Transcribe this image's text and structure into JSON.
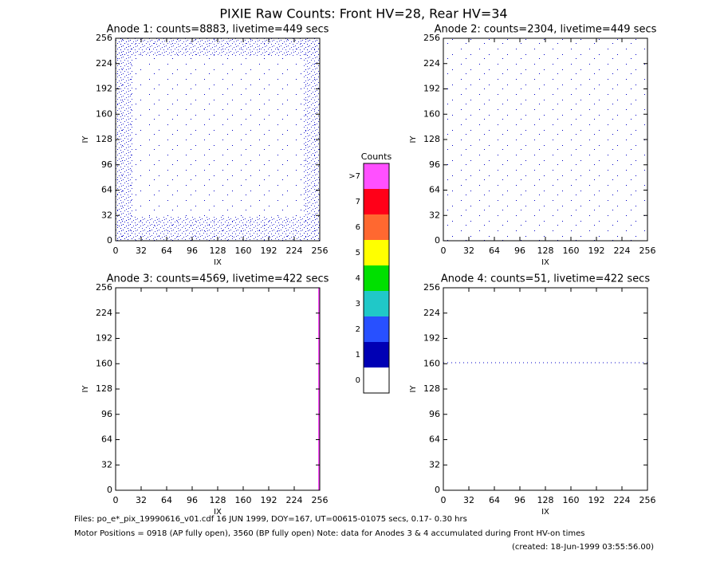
{
  "title": "PIXIE Raw Counts:  Front HV=28, Rear HV=34",
  "chart_data": [
    {
      "type": "heatmap",
      "title": "Anode 1: counts=8883, livetime=449 secs",
      "xlabel": "IX",
      "ylabel": "IY",
      "xlim": [
        0,
        256
      ],
      "ylim": [
        0,
        256
      ],
      "xticks": [
        0,
        32,
        64,
        96,
        128,
        160,
        192,
        224,
        256
      ],
      "yticks": [
        0,
        32,
        64,
        96,
        128,
        160,
        192,
        224,
        256
      ]
    },
    {
      "type": "heatmap",
      "title": "Anode 2: counts=2304, livetime=449 secs",
      "xlabel": "IX",
      "ylabel": "IY",
      "xlim": [
        0,
        256
      ],
      "ylim": [
        0,
        256
      ],
      "xticks": [
        0,
        32,
        64,
        96,
        128,
        160,
        192,
        224,
        256
      ],
      "yticks": [
        0,
        32,
        64,
        96,
        128,
        160,
        192,
        224,
        256
      ]
    },
    {
      "type": "heatmap",
      "title": "Anode 3: counts=4569, livetime=422 secs",
      "xlabel": "IX",
      "ylabel": "IY",
      "xlim": [
        0,
        256
      ],
      "ylim": [
        0,
        256
      ],
      "xticks": [
        0,
        32,
        64,
        96,
        128,
        160,
        192,
        224,
        256
      ],
      "yticks": [
        0,
        32,
        64,
        96,
        128,
        160,
        192,
        224,
        256
      ]
    },
    {
      "type": "heatmap",
      "title": "Anode 4: counts=51, livetime=422 secs",
      "xlabel": "IX",
      "ylabel": "IY",
      "xlim": [
        0,
        256
      ],
      "ylim": [
        0,
        256
      ],
      "xticks": [
        0,
        32,
        64,
        96,
        128,
        160,
        192,
        224,
        256
      ],
      "yticks": [
        0,
        32,
        64,
        96,
        128,
        160,
        192,
        224,
        256
      ]
    }
  ],
  "colorbar": {
    "title": "Counts",
    "labels": [
      "0",
      "1",
      "2",
      "3",
      "4",
      "5",
      "6",
      "7",
      ">7"
    ],
    "colors": [
      "#ffffff",
      "#0000b4",
      "#2850ff",
      "#20c8c8",
      "#00e000",
      "#ffff00",
      "#ff6830",
      "#ff0018",
      "#ff50ff"
    ]
  },
  "footer": {
    "files": "Files: po_e*_pix_19990616_v01.cdf    16 JUN 1999, DOY=167, UT=00615-01075 secs,  0.17- 0.30 hrs",
    "motor": "Motor Positions = 0918 (AP fully open), 3560 (BP fully open)    Note: data for Anodes 3 & 4 accumulated during Front HV-on times",
    "created": "(created: 18-Jun-1999 03:55:56.00)"
  }
}
